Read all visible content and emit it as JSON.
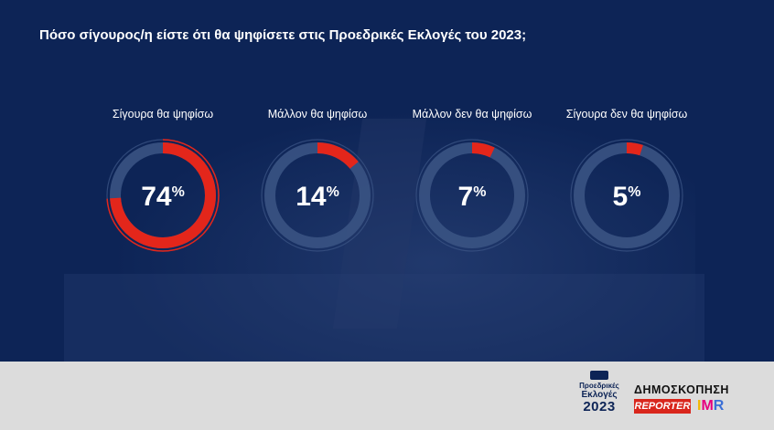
{
  "title": "Πόσο σίγουρος/η είστε ότι θα ψηφίσετε στις Προεδρικές Εκλογές του 2023;",
  "colors": {
    "panel": "#0d2456",
    "track": "#3a5383",
    "accent": "#e3261b",
    "text": "#ffffff",
    "footer": "#dcdcdc"
  },
  "chart_data": {
    "type": "pie",
    "title": "Πόσο σίγουρος/η είστε ότι θα ψηφίσετε στις Προεδρικές Εκλογές του 2023;",
    "categories": [
      "Σίγουρα θα ψηφίσω",
      "Μάλλον θα ψηφίσω",
      "Μάλλον δεν θα ψηφίσω",
      "Σίγουρα δεν θα ψηφίσω"
    ],
    "values": [
      74,
      14,
      7,
      5
    ],
    "labels": [
      "74%",
      "14%",
      "7%",
      "5%"
    ],
    "unit": "%"
  },
  "footer": {
    "elections_logo": {
      "line1": "Προεδρικές",
      "line2": "Εκλογές",
      "line3": "2023"
    },
    "poll_label": "ΔΗΜΟΣΚΟΠΗΣΗ",
    "reporter_label": "REPORTER",
    "imr_label": {
      "i": "I",
      "m": "M",
      "r": "R"
    }
  }
}
